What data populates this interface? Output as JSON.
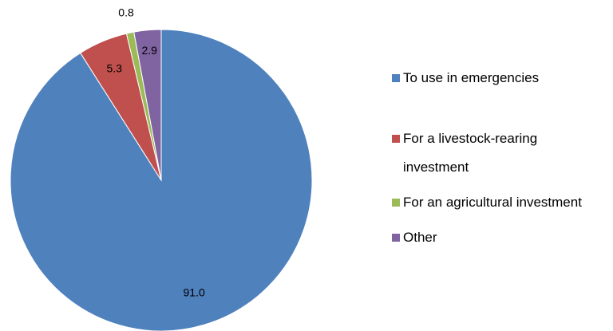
{
  "chart_data": {
    "type": "pie",
    "categories": [
      "To use in emergencies",
      "For a livestock-rearing investment",
      "For an agricultural investment",
      "Other"
    ],
    "values": [
      91,
      5.3,
      0.8,
      2.9
    ],
    "value_labels": [
      "91.0",
      "5.3",
      "0.8",
      "2.9"
    ],
    "colors": [
      "#4f81bd",
      "#c0504d",
      "#9bbb59",
      "#8064a2"
    ],
    "legend": "right"
  }
}
